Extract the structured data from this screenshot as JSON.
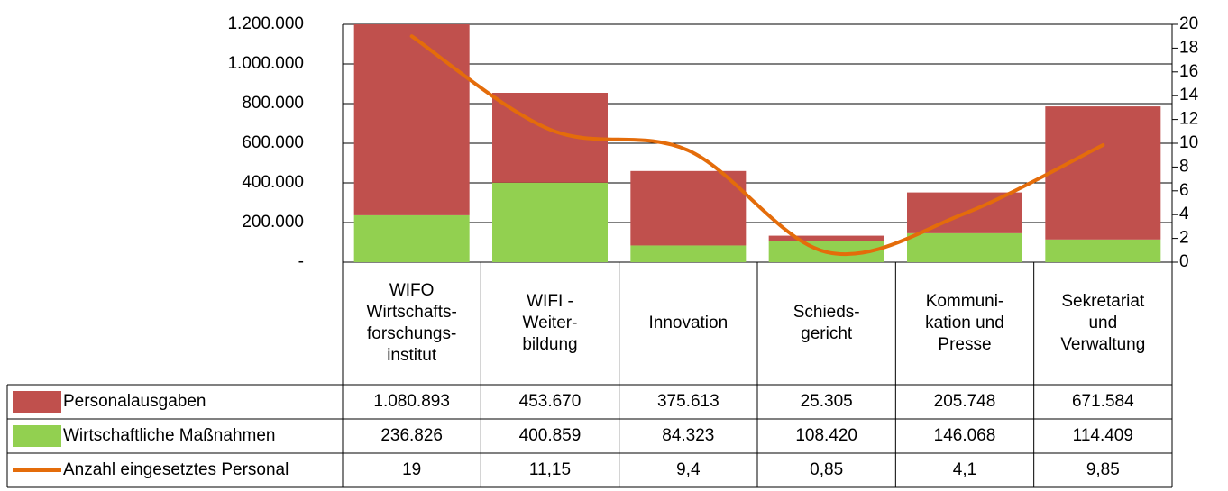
{
  "chart_data": {
    "type": "bar",
    "stacked": true,
    "grid": true,
    "categories": [
      "WIFO\nWirtschafts-\nforschungs-\ninstitut",
      "WIFI -\nWeiter-\nbildung",
      "Innovation",
      "Schieds-\ngericht",
      "Kommuni-\nkation und\nPresse",
      "Sekretariat\nund\nVerwaltung"
    ],
    "series": [
      {
        "name": "Personalausgaben",
        "type": "bar",
        "color": "#c0504d",
        "values": [
          1080893,
          453670,
          375613,
          25305,
          205748,
          671584
        ],
        "value_labels": [
          "1.080.893",
          "453.670",
          "375.613",
          "25.305",
          "205.748",
          "671.584"
        ]
      },
      {
        "name": "Wirtschaftliche Maßnahmen",
        "type": "bar",
        "color": "#92d050",
        "values": [
          236826,
          400859,
          84323,
          108420,
          146068,
          114409
        ],
        "value_labels": [
          "236.826",
          "400.859",
          "84.323",
          "108.420",
          "146.068",
          "114.409"
        ]
      },
      {
        "name": "Anzahl eingesetztes Personal",
        "type": "line",
        "axis": "y2",
        "color": "#e46c0a",
        "values": [
          19,
          11.15,
          9.4,
          0.85,
          4.1,
          9.85
        ],
        "value_labels": [
          "19",
          "11,15",
          "9,4",
          "0,85",
          "4,1",
          "9,85"
        ]
      }
    ],
    "ylim": [
      0,
      1200000
    ],
    "yticks": [
      {
        "value": 0,
        "label": "-"
      },
      {
        "value": 200000,
        "label": "200.000"
      },
      {
        "value": 400000,
        "label": "400.000"
      },
      {
        "value": 600000,
        "label": "600.000"
      },
      {
        "value": 800000,
        "label": "800.000"
      },
      {
        "value": 1000000,
        "label": "1.000.000"
      },
      {
        "value": 1200000,
        "label": "1.200.000"
      }
    ],
    "y2lim": [
      0,
      20
    ],
    "y2ticks": [
      0,
      2,
      4,
      6,
      8,
      10,
      12,
      14,
      16,
      18,
      20
    ]
  }
}
